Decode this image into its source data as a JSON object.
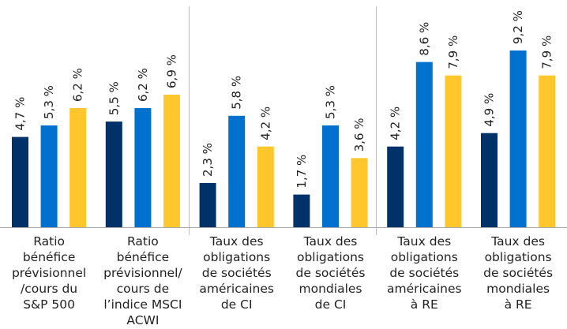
{
  "chart_data": {
    "type": "bar",
    "title": "",
    "xlabel": "",
    "ylabel": "",
    "ylim": [
      0,
      10
    ],
    "grid": false,
    "legend": "none",
    "categories": [
      [
        "Ratio",
        "bénéfice",
        "prévisionnel",
        "/cours du",
        "S&P 500"
      ],
      [
        "Ratio",
        "bénéfice",
        "prévisionnel/",
        "cours de",
        "l’indice MSCI",
        "ACWI"
      ],
      [
        "Taux des",
        "obligations",
        "de sociétés",
        "américaines",
        "de CI"
      ],
      [
        "Taux des",
        "obligations",
        "de sociétés",
        "mondiales",
        "de CI"
      ],
      [
        "Taux des",
        "obligations",
        "de sociétés",
        "américaines",
        "à RE"
      ],
      [
        "Taux des",
        "obligations",
        "de sociétés",
        "mondiales",
        "à RE"
      ]
    ],
    "series": [
      {
        "color": "#003168",
        "values": [
          4.7,
          5.5,
          2.3,
          1.7,
          4.2,
          4.9
        ],
        "labels": [
          "4,7 %",
          "5,5 %",
          "2,3 %",
          "1,7 %",
          "4,2 %",
          "4,9 %"
        ]
      },
      {
        "color": "#0071ce",
        "values": [
          5.3,
          6.2,
          5.8,
          5.3,
          8.6,
          9.2
        ],
        "labels": [
          "5,3 %",
          "6,2 %",
          "5,8 %",
          "5,3 %",
          "8,6 %",
          "9,2 %"
        ]
      },
      {
        "color": "#ffc72c",
        "values": [
          6.2,
          6.9,
          4.2,
          3.6,
          7.9,
          7.9
        ],
        "labels": [
          "6,2 %",
          "6,9 %",
          "4,2 %",
          "3,6 %",
          "7,9 %",
          "7,9 %"
        ]
      }
    ],
    "separators_after_category": [
      1,
      3
    ]
  }
}
